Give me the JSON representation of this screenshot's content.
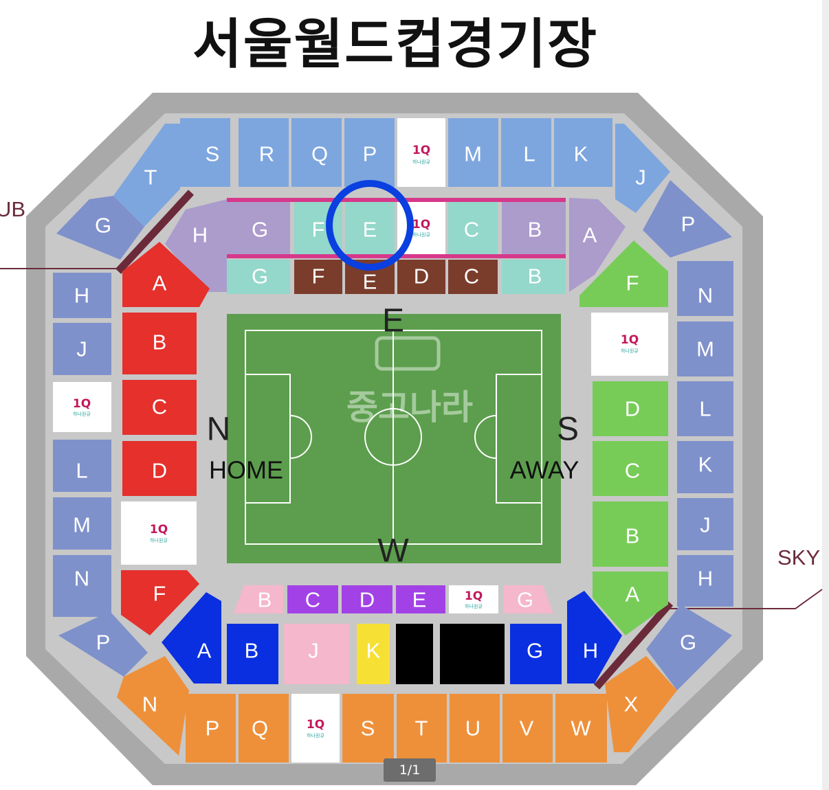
{
  "title": "서울월드컵경기장",
  "side_labels": {
    "club": "UB",
    "sky": "SKY"
  },
  "compass": {
    "east": "E",
    "west": "W",
    "north": "N",
    "south": "S"
  },
  "field_labels": {
    "home": "HOME",
    "away": "AWAY"
  },
  "watermark": {
    "text": "중고나라"
  },
  "logo": {
    "mark": "1Q",
    "sub": "하나원큐"
  },
  "page_counter": "1/1",
  "colors": {
    "outer_ring": "#a9a9a9",
    "concourse": "#c8c8c8",
    "pitch": "#5c9e4d",
    "upper_blue": "#7da6df",
    "slate": "#7f91cb",
    "red": "#e5302c",
    "green": "#77cc57",
    "orange": "#ee903a",
    "lavender": "#ab9ccc",
    "mint": "#93d8cb",
    "brown": "#7a3d2b",
    "purple": "#a242e6",
    "pink": "#f5b7cb",
    "royal_blue": "#0a2fe0",
    "yellow": "#f6e034",
    "black": "#000000",
    "circle_marker": "#0a3fe0"
  },
  "sections": {
    "upper_north": [
      "S",
      "R",
      "Q",
      "P",
      "M",
      "L",
      "K"
    ],
    "corner_nw": [
      "T",
      "G"
    ],
    "corner_ne": [
      "J",
      "P"
    ],
    "west_slate": [
      "H",
      "J",
      "L",
      "M",
      "N"
    ],
    "east_slate": [
      "N",
      "M",
      "L",
      "K",
      "J",
      "H"
    ],
    "inner_north_top": [
      "G",
      "F",
      "E",
      "C",
      "B"
    ],
    "inner_north_bottom": [
      "G",
      "F",
      "E",
      "D",
      "C",
      "B"
    ],
    "inner_north_sides": [
      "H",
      "A"
    ],
    "west_red": [
      "A",
      "B",
      "C",
      "D",
      "F"
    ],
    "east_green": [
      "F",
      "D",
      "C",
      "B",
      "A"
    ],
    "south_inner": [
      "B",
      "C",
      "D",
      "E",
      "G"
    ],
    "south_lower": [
      "A",
      "B",
      "J",
      "K",
      "G",
      "H"
    ],
    "corner_sw": [
      "P",
      "N"
    ],
    "corner_se": [
      "G",
      "X"
    ],
    "upper_south": [
      "P",
      "Q",
      "S",
      "T",
      "U",
      "V",
      "W"
    ]
  }
}
